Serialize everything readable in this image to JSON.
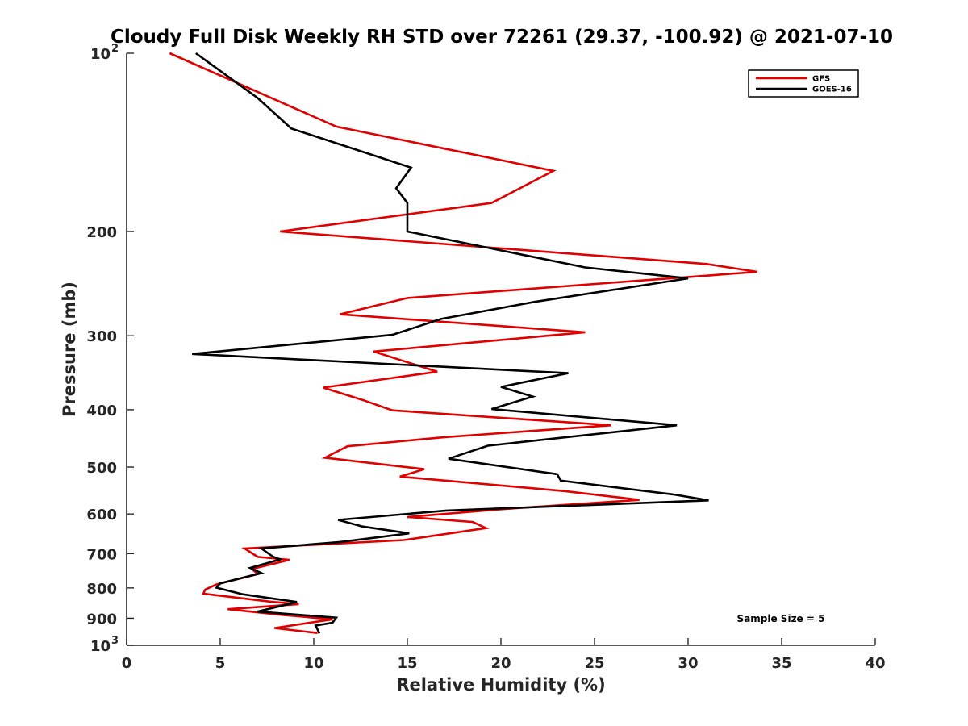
{
  "chart_data": {
    "type": "line",
    "title": "Cloudy Full Disk Weekly RH STD over 72261 (29.37, -100.92) @ 2021-07-10",
    "xlabel": "Relative Humidity (%)",
    "ylabel": "Pressure (mb)",
    "xlim": [
      0,
      40
    ],
    "ylim": [
      100,
      1000
    ],
    "y_scale": "log",
    "y_reversed": true,
    "x_ticks": [
      0,
      5,
      10,
      15,
      20,
      25,
      30,
      35,
      40
    ],
    "y_ticks": [
      {
        "value": 100,
        "label": "10",
        "sup": "2"
      },
      {
        "value": 200,
        "label": "200"
      },
      {
        "value": 300,
        "label": "300"
      },
      {
        "value": 400,
        "label": "400"
      },
      {
        "value": 500,
        "label": "500"
      },
      {
        "value": 600,
        "label": "600"
      },
      {
        "value": 700,
        "label": "700"
      },
      {
        "value": 800,
        "label": "800"
      },
      {
        "value": 900,
        "label": "900"
      },
      {
        "value": 1000,
        "label": "10",
        "sup": "3"
      }
    ],
    "grid": false,
    "legend_position": "top-right",
    "annotation": "Sample Size = 5",
    "series": [
      {
        "name": "GFS",
        "color": "#e00000",
        "points": [
          [
            2.3,
            100
          ],
          [
            11.2,
            133
          ],
          [
            22.8,
            158
          ],
          [
            19.5,
            179
          ],
          [
            8.2,
            200
          ],
          [
            31.0,
            227
          ],
          [
            33.7,
            234
          ],
          [
            15.0,
            259
          ],
          [
            11.4,
            276
          ],
          [
            24.5,
            296
          ],
          [
            13.2,
            319
          ],
          [
            16.6,
            345
          ],
          [
            10.5,
            367
          ],
          [
            12.6,
            385
          ],
          [
            14.2,
            401
          ],
          [
            25.9,
            425
          ],
          [
            17.0,
            445
          ],
          [
            11.8,
            461
          ],
          [
            10.6,
            482
          ],
          [
            15.9,
            504
          ],
          [
            14.6,
            519
          ],
          [
            23.4,
            549
          ],
          [
            27.4,
            568
          ],
          [
            20.0,
            589
          ],
          [
            15.0,
            607
          ],
          [
            18.5,
            619
          ],
          [
            19.2,
            634
          ],
          [
            14.8,
            664
          ],
          [
            6.3,
            686
          ],
          [
            7.0,
            709
          ],
          [
            8.7,
            717
          ],
          [
            6.7,
            743
          ],
          [
            7.0,
            758
          ],
          [
            4.8,
            789
          ],
          [
            4.2,
            805
          ],
          [
            4.1,
            818
          ],
          [
            7.7,
            844
          ],
          [
            9.2,
            852
          ],
          [
            5.4,
            869
          ],
          [
            8.1,
            887
          ],
          [
            11.0,
            904
          ],
          [
            7.9,
            935
          ],
          [
            10.2,
            953
          ]
        ]
      },
      {
        "name": "GOES-16",
        "color": "#000000",
        "points": [
          [
            3.7,
            100
          ],
          [
            7.0,
            119
          ],
          [
            8.8,
            134
          ],
          [
            15.2,
            156
          ],
          [
            14.4,
            169
          ],
          [
            15.0,
            179
          ],
          [
            15.0,
            200
          ],
          [
            24.5,
            230
          ],
          [
            30.0,
            240
          ],
          [
            21.8,
            263
          ],
          [
            16.8,
            281
          ],
          [
            14.2,
            299
          ],
          [
            3.5,
            322
          ],
          [
            23.6,
            347
          ],
          [
            20.0,
            366
          ],
          [
            21.7,
            380
          ],
          [
            19.5,
            399
          ],
          [
            29.4,
            425
          ],
          [
            19.3,
            460
          ],
          [
            17.2,
            484
          ],
          [
            23.0,
            514
          ],
          [
            23.2,
            527
          ],
          [
            29.2,
            556
          ],
          [
            31.1,
            569
          ],
          [
            17.1,
            592
          ],
          [
            11.3,
            614
          ],
          [
            12.6,
            630
          ],
          [
            15.1,
            647
          ],
          [
            11.4,
            669
          ],
          [
            7.2,
            686
          ],
          [
            7.8,
            708
          ],
          [
            8.2,
            716
          ],
          [
            6.6,
            740
          ],
          [
            7.2,
            755
          ],
          [
            5.0,
            786
          ],
          [
            4.8,
            799
          ],
          [
            6.2,
            820
          ],
          [
            9.1,
            845
          ],
          [
            7.0,
            877
          ],
          [
            11.2,
            898
          ],
          [
            11.0,
            916
          ],
          [
            10.1,
            926
          ],
          [
            10.3,
            955
          ]
        ]
      }
    ]
  }
}
